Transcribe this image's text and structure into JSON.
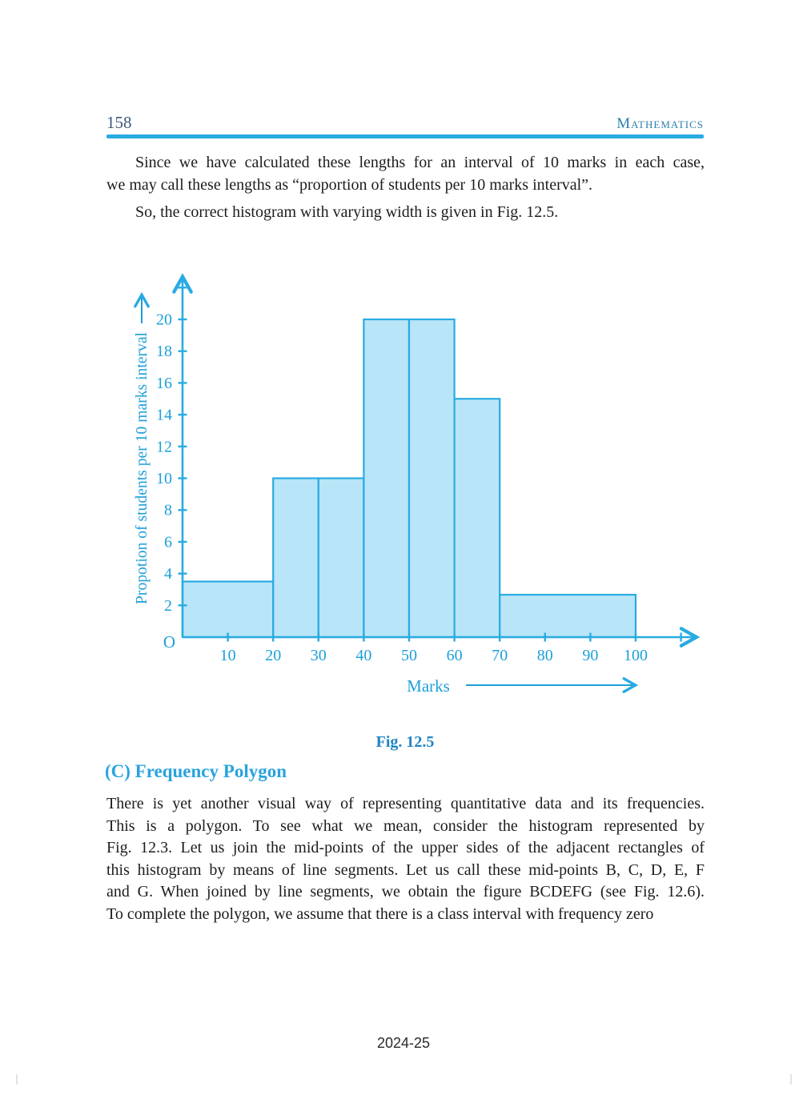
{
  "header": {
    "page_number": "158",
    "title": "Mathematics"
  },
  "intro": {
    "para1_lines": [
      "Since we have calculated these lengths for an interval of 10 marks in each case,",
      "we may call these lengths as “proportion of students per 10 marks interval”."
    ],
    "para2": "So, the correct histogram with varying width is given in Fig. 12.5."
  },
  "figure": {
    "caption": "Fig. 12.5"
  },
  "section": {
    "heading": "(C) Frequency Polygon",
    "body_lines": [
      "There is yet another visual way of representing quantitative data and its frequencies.",
      "This is a polygon. To see what we mean, consider the histogram represented by",
      "Fig. 12.3. Let us join the mid-points of the upper sides of the adjacent rectangles of",
      "this histogram by means of line segments. Let us call these mid-points B, C, D, E, F",
      "and G. When joined by line segments, we obtain the figure BCDEFG (see Fig. 12.6).",
      "To complete the polygon, we assume that there is a class interval with frequency zero"
    ]
  },
  "footer": {
    "text": "2024-25"
  },
  "chart_data": {
    "type": "bar",
    "title": "Fig. 12.5",
    "xlabel": "Marks",
    "ylabel": "Propotion of students per 10 marks interval",
    "origin_label": "O",
    "bars": [
      {
        "interval": [
          0,
          20
        ],
        "value": 3.5
      },
      {
        "interval": [
          20,
          30
        ],
        "value": 10
      },
      {
        "interval": [
          30,
          40
        ],
        "value": 10
      },
      {
        "interval": [
          40,
          50
        ],
        "value": 20
      },
      {
        "interval": [
          50,
          60
        ],
        "value": 20
      },
      {
        "interval": [
          60,
          70
        ],
        "value": 15
      },
      {
        "interval": [
          70,
          100
        ],
        "value": 2.67
      }
    ],
    "x_ticks": [
      10,
      20,
      30,
      40,
      50,
      60,
      70,
      80,
      90,
      100
    ],
    "y_ticks": [
      2,
      4,
      6,
      8,
      10,
      12,
      14,
      16,
      18,
      20
    ],
    "x_axis_extra_tick": 110,
    "y_axis_extra_tick": 22,
    "xlim": [
      0,
      114
    ],
    "ylim": [
      0,
      23
    ],
    "grid": false,
    "legend": "none",
    "colors": {
      "bar_fill": "#b9e5f8",
      "axis_stroke": "#29abe2",
      "tick_label": "#1d9fd9"
    }
  }
}
